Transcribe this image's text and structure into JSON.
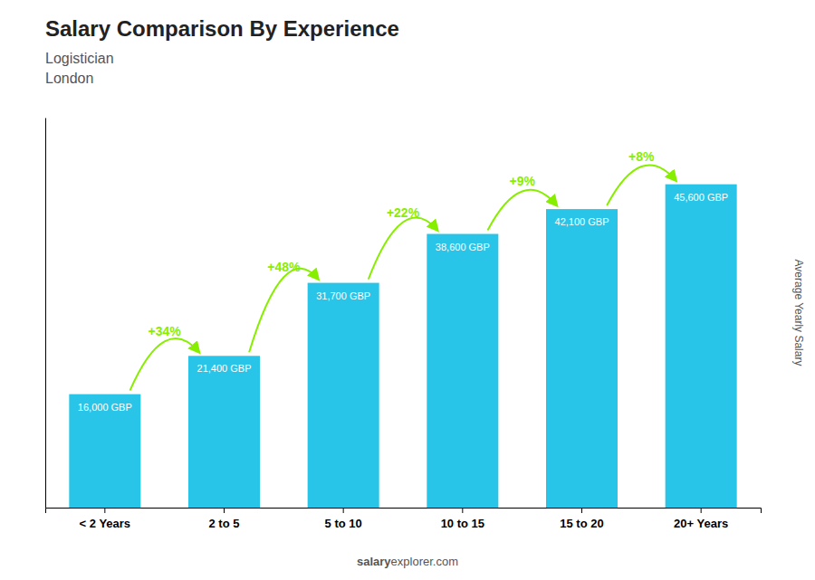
{
  "chart_data": {
    "type": "bar",
    "title": "Salary Comparison By Experience",
    "subtitle": [
      "Logistician",
      "London"
    ],
    "ylabel": "Average Yearly Salary",
    "categories": [
      "< 2 Years",
      "2 to 5",
      "5 to 10",
      "10 to 15",
      "15 to 20",
      "20+ Years"
    ],
    "values": [
      16000,
      21400,
      31700,
      38600,
      42100,
      45600
    ],
    "value_labels": [
      "16,000 GBP",
      "21,400 GBP",
      "31,700 GBP",
      "38,600 GBP",
      "42,100 GBP",
      "45,600 GBP"
    ],
    "data_labels": true,
    "color": "#28c5e8",
    "ylim": [
      0,
      55000
    ],
    "tick_labels": "x",
    "grid": false,
    "annotations": [
      {
        "text": "+34%",
        "color": "#88ee00"
      },
      {
        "text": "+48%",
        "color": "#88ee00"
      },
      {
        "text": "+22%",
        "color": "#88ee00"
      },
      {
        "text": "+9%",
        "color": "#88ee00"
      },
      {
        "text": "+8%",
        "color": "#88ee00"
      }
    ],
    "watermark": [
      "salary",
      "explorer.com"
    ]
  }
}
